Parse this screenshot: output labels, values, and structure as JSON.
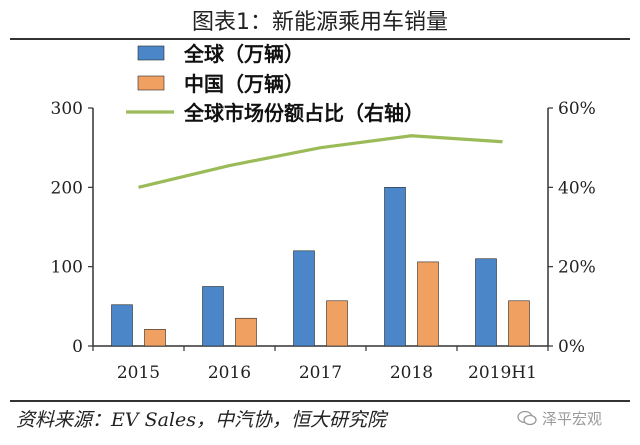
{
  "title": "图表1：新能源乘用车销量",
  "source": "资料来源：EV Sales，中汽协，恒大研究院",
  "watermark": "泽平宏观",
  "colors": {
    "global": "#4a86c8",
    "china": "#f0a060",
    "share": "#9bbb59"
  },
  "chart_data": {
    "type": "bar",
    "categories": [
      "2015",
      "2016",
      "2017",
      "2018",
      "2019H1"
    ],
    "series": [
      {
        "name": "全球（万辆）",
        "type": "bar",
        "axis": "left",
        "values": [
          52,
          75,
          120,
          200,
          110
        ]
      },
      {
        "name": "中国（万辆）",
        "type": "bar",
        "axis": "left",
        "values": [
          21,
          35,
          57,
          106,
          57
        ]
      },
      {
        "name": "全球市场份额占比（右轴）",
        "type": "line",
        "axis": "right",
        "values": [
          0.4,
          0.455,
          0.5,
          0.53,
          0.515
        ]
      }
    ],
    "y_left": {
      "ylim": [
        0,
        300
      ],
      "ticks": [
        "0",
        "100",
        "200",
        "300"
      ]
    },
    "y_right": {
      "ylim": [
        0,
        0.6
      ],
      "ticks": [
        "0%",
        "20%",
        "40%",
        "60%"
      ]
    },
    "legend_position": "top-left"
  }
}
